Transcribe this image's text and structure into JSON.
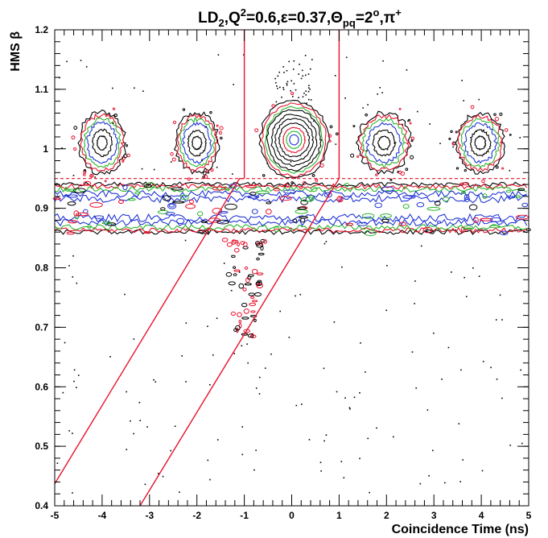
{
  "chart_data": {
    "type": "scatter",
    "title": {
      "parts": [
        {
          "t": "LD"
        },
        {
          "t": "2",
          "sub": true
        },
        {
          "t": ",Q"
        },
        {
          "t": "2",
          "sup": true
        },
        {
          "t": "=0.6,ε=0.37,Θ"
        },
        {
          "t": "pq",
          "sub": true
        },
        {
          "t": "=2"
        },
        {
          "t": "o",
          "sup": true
        },
        {
          "t": ",π"
        },
        {
          "t": "+",
          "sup": true
        }
      ]
    },
    "xlabel": "Coincidence Time (ns)",
    "ylabel": "HMS β",
    "xlim": [
      -5,
      5
    ],
    "ylim": [
      0.4,
      1.2
    ],
    "x_ticks": [
      "-5",
      "-4",
      "-3",
      "-2",
      "-1",
      "0",
      "1",
      "2",
      "3",
      "4",
      "5"
    ],
    "y_ticks": [
      "0.4",
      "0.5",
      "0.6",
      "0.7",
      "0.8",
      "0.9",
      "1",
      "1.1",
      "1.2"
    ],
    "contour_colors": [
      "#000000",
      "#e8112d",
      "#2bb52b",
      "#2236d4"
    ],
    "proton_blobs": [
      {
        "x": -4.0,
        "y": 1.01,
        "rx": 0.48,
        "ry": 0.052
      },
      {
        "x": -2.0,
        "y": 1.01,
        "rx": 0.45,
        "ry": 0.05
      },
      {
        "x": 0.05,
        "y": 1.015,
        "rx": 0.72,
        "ry": 0.065
      },
      {
        "x": 1.95,
        "y": 1.01,
        "rx": 0.55,
        "ry": 0.05
      },
      {
        "x": 3.98,
        "y": 1.01,
        "rx": 0.5,
        "ry": 0.05
      }
    ],
    "pion_band": {
      "y_center": 0.9,
      "half_width": 0.04
    },
    "cuts": {
      "dashed_beta": 0.95,
      "upper_window": {
        "x_left": -1,
        "x_right": 1,
        "y_bottom": 0.95,
        "y_top": 1.2
      },
      "lower_diagonal_left": [
        [
          -5,
          0.437
        ],
        [
          -1.1,
          0.95
        ]
      ],
      "lower_diagonal_right": [
        [
          -3.2,
          0.4
        ],
        [
          1,
          0.95
        ]
      ]
    }
  }
}
